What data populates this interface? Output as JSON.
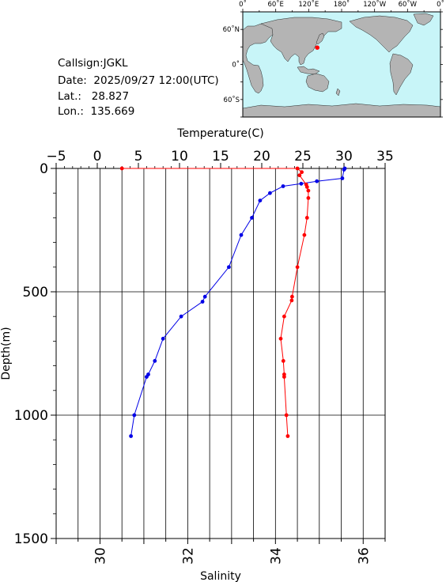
{
  "info": {
    "callsign": "Callsign:JGKL",
    "date": "Date:  2025/09/27 12:00(UTC)",
    "lat": "Lat.:   28.827",
    "lon": "Lon.:  135.669"
  },
  "map": {
    "top_labels": [
      "0˚",
      "60˚E",
      "120˚E",
      "180˚",
      "120˚W",
      "60˚W",
      "0˚"
    ],
    "left_labels": [
      "60˚N",
      "0˚",
      "60˚S"
    ],
    "marker": {
      "lat": 28.827,
      "lon": 135.669,
      "color": "#ff0000"
    },
    "ocean_color": "#c8f5f8",
    "land_color": "#b4b4b4"
  },
  "chart_data": {
    "type": "line",
    "xlabel_top": "Temperature(C)",
    "xlabel_bottom": "Salinity",
    "ylabel": "Depth(m)",
    "temp_range": [
      -5,
      35
    ],
    "temp_ticks": [
      "−5",
      "0",
      "5",
      "10",
      "15",
      "20",
      "25",
      "30",
      "35"
    ],
    "sal_range": [
      29,
      36.5
    ],
    "sal_ticks": [
      "30",
      "32",
      "34",
      "36"
    ],
    "depth_range": [
      0,
      1500
    ],
    "depth_ticks": [
      "0",
      "500",
      "1000",
      "1500"
    ],
    "grid": true,
    "series": [
      {
        "axis": "temperature",
        "color": "#0000e6",
        "points": [
          [
            30.1,
            0
          ],
          [
            30.0,
            5
          ],
          [
            29.8,
            40
          ],
          [
            26.7,
            52
          ],
          [
            24.8,
            62
          ],
          [
            22.6,
            72
          ],
          [
            21.0,
            100
          ],
          [
            19.8,
            130
          ],
          [
            18.8,
            200
          ],
          [
            17.5,
            270
          ],
          [
            16.0,
            400
          ],
          [
            13.1,
            520
          ],
          [
            12.8,
            540
          ],
          [
            10.2,
            600
          ],
          [
            8.0,
            690
          ],
          [
            7.0,
            780
          ],
          [
            6.2,
            835
          ],
          [
            6.0,
            845
          ],
          [
            4.5,
            1000
          ],
          [
            4.1,
            1085
          ]
        ]
      },
      {
        "axis": "salinity",
        "color": "#ff0000",
        "points": [
          [
            30.5,
            0
          ],
          [
            34.5,
            0
          ],
          [
            34.6,
            15
          ],
          [
            34.55,
            28
          ],
          [
            34.7,
            65
          ],
          [
            34.72,
            75
          ],
          [
            34.75,
            90
          ],
          [
            34.75,
            120
          ],
          [
            34.72,
            200
          ],
          [
            34.66,
            270
          ],
          [
            34.5,
            400
          ],
          [
            34.38,
            520
          ],
          [
            34.37,
            535
          ],
          [
            34.2,
            600
          ],
          [
            34.12,
            690
          ],
          [
            34.18,
            780
          ],
          [
            34.2,
            835
          ],
          [
            34.2,
            845
          ],
          [
            34.25,
            1000
          ],
          [
            34.28,
            1085
          ]
        ]
      }
    ]
  }
}
